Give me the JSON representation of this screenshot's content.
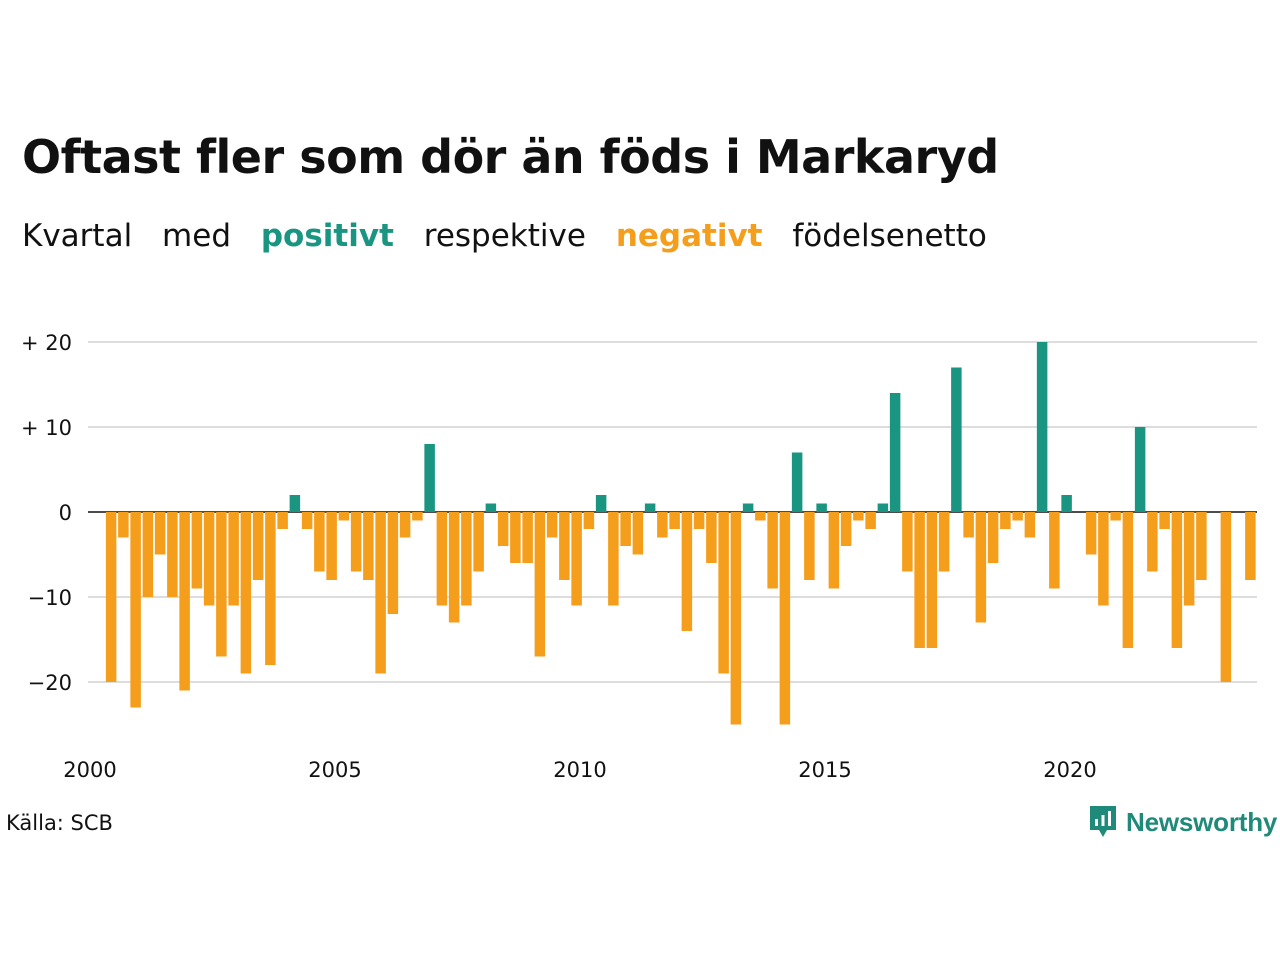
{
  "header": {
    "title": "Oftast fler som dör än föds i Markaryd",
    "subtitle_parts": {
      "p1": "Kvartal",
      "p2": "med",
      "positive": "positivt",
      "p3": "respektive",
      "negative": "negativt",
      "p4": "födelsenetto"
    }
  },
  "footer": {
    "source": "Källa: SCB",
    "brand": "Newsworthy"
  },
  "colors": {
    "positive": "#1a9582",
    "negative": "#f49e1b",
    "grid": "#dddddd",
    "axis": "#111111",
    "brand": "#1f8a7a"
  },
  "icons": {
    "brand_logo": "newsworthy-logo-icon"
  },
  "chart_data": {
    "type": "bar",
    "title": "Oftast fler som dör än föds i Markaryd",
    "subtitle": "Kvartal med positivt respektive negativt födelsenetto",
    "ylim": [
      -25,
      20
    ],
    "y_ticks": [
      {
        "value": 20,
        "label": "+ 20"
      },
      {
        "value": 10,
        "label": "+ 10"
      },
      {
        "value": 0,
        "label": "0"
      },
      {
        "value": -10,
        "label": "−10"
      },
      {
        "value": -20,
        "label": "−20"
      }
    ],
    "x_ticks": [
      "2000",
      "2005",
      "2010",
      "2015",
      "2020"
    ],
    "grid": true,
    "start_year": 2000,
    "quarters_per_year": 4,
    "values": [
      -20,
      -3,
      -23,
      -10,
      -5,
      -10,
      -21,
      -9,
      -11,
      -17,
      -11,
      -19,
      -8,
      -18,
      -2,
      2,
      -2,
      -7,
      -8,
      -1,
      -7,
      -8,
      -19,
      -12,
      -3,
      -1,
      8,
      -11,
      -13,
      -11,
      -7,
      1,
      -4,
      -6,
      -6,
      -17,
      -3,
      -8,
      -11,
      -2,
      2,
      -11,
      -4,
      -5,
      1,
      -3,
      -2,
      -14,
      -2,
      -6,
      -19,
      -25,
      1,
      -1,
      -9,
      -25,
      7,
      -8,
      1,
      -9,
      -4,
      -1,
      -2,
      1,
      14,
      -7,
      -16,
      -16,
      -7,
      17,
      -3,
      -13,
      -6,
      -2,
      -1,
      -3,
      20,
      -9,
      2,
      0,
      -5,
      -11,
      -1,
      -16,
      10,
      -7,
      -2,
      -16,
      -11,
      -8,
      0,
      -20,
      0,
      -8
    ]
  }
}
